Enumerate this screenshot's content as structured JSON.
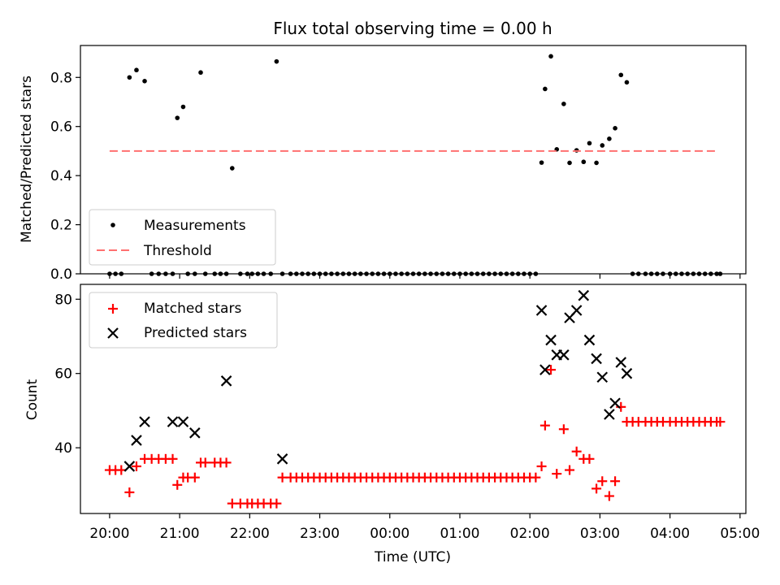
{
  "title": "Flux total observing time = 0.00 h",
  "chart_data": [
    {
      "type": "scatter",
      "title": "Flux total observing time = 0.00 h",
      "xlabel": "",
      "ylabel": "Matched/Predicted stars",
      "xlim": [
        "19:35",
        "05:05"
      ],
      "ylim": [
        0,
        0.93
      ],
      "yticks": [
        0.0,
        0.2,
        0.4,
        0.6,
        0.8
      ],
      "ytick_labels": [
        "0.0",
        "0.2",
        "0.4",
        "0.6",
        "0.8"
      ],
      "grid": false,
      "legend": "lower-left",
      "threshold": {
        "name": "Threshold",
        "value": 0.5,
        "x_start": "20:00",
        "x_end": "04:40",
        "color": "#ff7070",
        "style": "dashed"
      },
      "series": [
        {
          "name": "Measurements",
          "color": "#000000",
          "marker": "dot",
          "x": [
            "20:00",
            "20:05",
            "20:10",
            "20:17",
            "20:23",
            "20:30",
            "20:36",
            "20:42",
            "20:48",
            "20:54",
            "20:58",
            "21:03",
            "21:07",
            "21:13",
            "21:18",
            "21:22",
            "21:30",
            "21:35",
            "21:40",
            "21:45",
            "21:52",
            "21:58",
            "22:02",
            "22:07",
            "22:12",
            "22:18",
            "22:23",
            "22:28",
            "22:35",
            "22:40",
            "22:45",
            "22:50",
            "22:55",
            "23:00",
            "23:05",
            "23:10",
            "23:15",
            "23:20",
            "23:25",
            "23:30",
            "23:35",
            "23:40",
            "23:45",
            "23:50",
            "23:55",
            "00:00",
            "00:05",
            "00:10",
            "00:15",
            "00:20",
            "00:25",
            "00:30",
            "00:35",
            "00:40",
            "00:45",
            "00:50",
            "00:55",
            "01:00",
            "01:05",
            "01:10",
            "01:15",
            "01:20",
            "01:25",
            "01:30",
            "01:35",
            "01:40",
            "01:45",
            "01:50",
            "01:55",
            "02:00",
            "02:05",
            "02:10",
            "02:13",
            "02:18",
            "02:23",
            "02:29",
            "02:34",
            "02:40",
            "02:46",
            "02:51",
            "02:57",
            "03:02",
            "03:08",
            "03:13",
            "03:18",
            "03:23",
            "03:28",
            "03:33",
            "03:39",
            "03:44",
            "03:49",
            "03:54",
            "04:00",
            "04:05",
            "04:10",
            "04:15",
            "04:20",
            "04:25",
            "04:30",
            "04:35",
            "04:40",
            "04:43"
          ],
          "y": [
            0,
            0,
            0,
            0.8,
            0.83,
            0.785,
            0,
            0,
            0,
            0,
            0.635,
            0.68,
            0,
            0,
            0.82,
            0,
            0,
            0,
            0,
            0.43,
            0,
            0,
            0,
            0,
            0,
            0,
            0.865,
            0,
            0,
            0,
            0,
            0,
            0,
            0,
            0,
            0,
            0,
            0,
            0,
            0,
            0,
            0,
            0,
            0,
            0,
            0,
            0,
            0,
            0,
            0,
            0,
            0,
            0,
            0,
            0,
            0,
            0,
            0,
            0,
            0,
            0,
            0,
            0,
            0,
            0,
            0,
            0,
            0,
            0,
            0,
            0,
            0.453,
            0.753,
            0.886,
            0.507,
            0.692,
            0.452,
            0.503,
            0.456,
            0.532,
            0.452,
            0.523,
            0.55,
            0.593,
            0.81,
            0.78,
            0,
            0,
            0,
            0,
            0,
            0,
            0,
            0,
            0,
            0,
            0,
            0,
            0,
            0,
            0,
            0
          ]
        }
      ]
    },
    {
      "type": "scatter",
      "title": "",
      "xlabel": "Time (UTC)",
      "ylabel": "Count",
      "xlim": [
        "19:35",
        "05:05"
      ],
      "ylim": [
        22.3,
        84
      ],
      "yticks": [
        40,
        60,
        80
      ],
      "ytick_labels": [
        "40",
        "60",
        "80"
      ],
      "xticks": [
        "20:00",
        "21:00",
        "22:00",
        "23:00",
        "00:00",
        "01:00",
        "02:00",
        "03:00",
        "04:00",
        "05:00"
      ],
      "xtick_labels": [
        "20:00",
        "21:00",
        "22:00",
        "23:00",
        "00:00",
        "01:00",
        "02:00",
        "03:00",
        "04:00",
        "05:00"
      ],
      "grid": false,
      "legend": "upper-left",
      "series": [
        {
          "name": "Matched stars",
          "color": "#ff0000",
          "marker": "plus",
          "x": [
            "20:00",
            "20:05",
            "20:10",
            "20:17",
            "20:23",
            "20:30",
            "20:36",
            "20:42",
            "20:48",
            "20:54",
            "20:58",
            "21:03",
            "21:07",
            "21:13",
            "21:18",
            "21:22",
            "21:30",
            "21:35",
            "21:40",
            "21:45",
            "21:52",
            "21:58",
            "22:02",
            "22:07",
            "22:12",
            "22:18",
            "22:23",
            "22:28",
            "22:35",
            "22:40",
            "22:45",
            "22:50",
            "22:55",
            "23:00",
            "23:05",
            "23:10",
            "23:15",
            "23:20",
            "23:25",
            "23:30",
            "23:35",
            "23:40",
            "23:45",
            "23:50",
            "23:55",
            "00:00",
            "00:05",
            "00:10",
            "00:15",
            "00:20",
            "00:25",
            "00:30",
            "00:35",
            "00:40",
            "00:45",
            "00:50",
            "00:55",
            "01:00",
            "01:05",
            "01:10",
            "01:15",
            "01:20",
            "01:25",
            "01:30",
            "01:35",
            "01:40",
            "01:45",
            "01:50",
            "01:55",
            "02:00",
            "02:05",
            "02:10",
            "02:13",
            "02:18",
            "02:23",
            "02:29",
            "02:34",
            "02:40",
            "02:46",
            "02:51",
            "02:57",
            "03:02",
            "03:08",
            "03:13",
            "03:18",
            "03:23",
            "03:28",
            "03:33",
            "03:39",
            "03:44",
            "03:49",
            "03:54",
            "04:00",
            "04:05",
            "04:10",
            "04:15",
            "04:20",
            "04:25",
            "04:30",
            "04:35",
            "04:40",
            "04:43"
          ],
          "y": [
            34,
            34,
            34,
            28,
            35,
            37,
            37,
            37,
            37,
            37,
            30,
            32,
            32,
            32,
            36,
            36,
            36,
            36,
            36,
            25,
            25,
            25,
            25,
            25,
            25,
            25,
            25,
            32,
            32,
            32,
            32,
            32,
            32,
            32,
            32,
            32,
            32,
            32,
            32,
            32,
            32,
            32,
            32,
            32,
            32,
            32,
            32,
            32,
            32,
            32,
            32,
            32,
            32,
            32,
            32,
            32,
            32,
            32,
            32,
            32,
            32,
            32,
            32,
            32,
            32,
            32,
            32,
            32,
            32,
            32,
            32,
            35,
            46,
            61,
            33,
            45,
            34,
            39,
            37,
            37,
            29,
            31,
            27,
            31,
            51,
            47,
            47,
            47,
            47,
            47,
            47,
            47,
            47,
            47,
            47,
            47,
            47,
            47,
            47,
            47,
            47,
            47
          ]
        },
        {
          "name": "Predicted stars",
          "color": "#000000",
          "marker": "x",
          "x": [
            "20:17",
            "20:23",
            "20:30",
            "20:54",
            "21:03",
            "21:13",
            "21:40",
            "22:28",
            "02:10",
            "02:13",
            "02:18",
            "02:23",
            "02:29",
            "02:34",
            "02:40",
            "02:46",
            "02:51",
            "02:57",
            "03:02",
            "03:08",
            "03:13",
            "03:18",
            "03:23"
          ],
          "y": [
            35,
            42,
            47,
            47,
            47,
            44,
            58,
            37,
            77,
            61,
            69,
            65,
            65,
            75,
            77,
            81,
            69,
            64,
            59,
            49,
            52,
            63,
            60
          ]
        }
      ]
    }
  ]
}
